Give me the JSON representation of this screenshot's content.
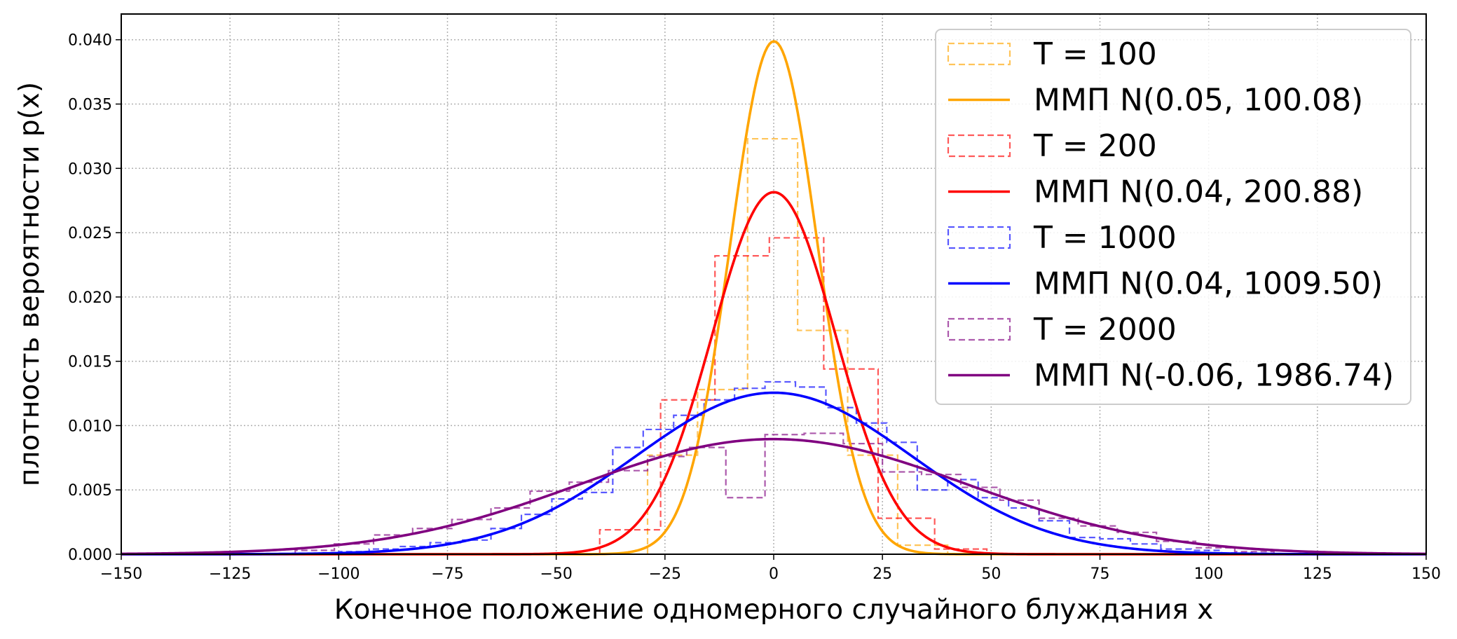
{
  "chart_data": {
    "type": "line",
    "title": "",
    "xlabel": "Конечное положение одномерного случайного блуждания x",
    "ylabel": "плотность вероятности p(x)",
    "xlim": [
      -150,
      150
    ],
    "ylim": [
      0,
      0.042
    ],
    "x_ticks": [
      -150,
      -125,
      -100,
      -75,
      -50,
      -25,
      0,
      25,
      50,
      75,
      100,
      125,
      150
    ],
    "y_ticks": [
      0.0,
      0.005,
      0.01,
      0.015,
      0.02,
      0.025,
      0.03,
      0.035,
      0.04
    ],
    "x_tick_labels": [
      "−150",
      "−125",
      "−100",
      "−75",
      "−50",
      "−25",
      "0",
      "25",
      "50",
      "75",
      "100",
      "125",
      "150"
    ],
    "y_tick_labels": [
      "0.000",
      "0.005",
      "0.010",
      "0.015",
      "0.020",
      "0.025",
      "0.030",
      "0.035",
      "0.040"
    ],
    "grid": true,
    "legend_position": "top-right",
    "histograms": [
      {
        "name": "T = 100",
        "color": "#FFA500",
        "edges": [
          -29,
          -17.5,
          -6,
          5.5,
          17,
          28.5,
          40
        ],
        "values": [
          0.0077,
          0.0128,
          0.0323,
          0.0174,
          0.0077,
          0.0007
        ]
      },
      {
        "name": "T = 200",
        "color": "#FF0000",
        "edges": [
          -40,
          -26,
          -13.5,
          -1,
          11.5,
          24,
          37,
          49
        ],
        "values": [
          0.0019,
          0.012,
          0.0232,
          0.0246,
          0.0144,
          0.0028,
          0.0004
        ]
      },
      {
        "name": "T = 1000",
        "color": "#0000FF",
        "edges": [
          -100,
          -93,
          -86,
          -79,
          -72,
          -65,
          -58,
          -51,
          -44,
          -37,
          -30,
          -23,
          -16,
          -9,
          -2,
          5,
          12,
          19,
          26,
          33,
          40,
          47,
          54,
          61,
          68,
          75,
          82,
          89,
          96,
          103,
          110
        ],
        "values": [
          0.0002,
          0.0004,
          0.0006,
          0.0009,
          0.0011,
          0.002,
          0.0031,
          0.0043,
          0.0048,
          0.0083,
          0.0097,
          0.0108,
          0.012,
          0.0129,
          0.0134,
          0.013,
          0.0114,
          0.0102,
          0.0087,
          0.005,
          0.0058,
          0.0044,
          0.0036,
          0.0026,
          0.0013,
          0.0012,
          0.0008,
          0.0004,
          0.0003,
          0.0001
        ]
      },
      {
        "name": "T = 2000",
        "color": "#800080",
        "edges": [
          -110,
          -101,
          -92,
          -83,
          -74,
          -65,
          -56,
          -47,
          -38,
          -29,
          -20,
          -11,
          -2,
          7,
          16,
          25,
          34,
          43,
          52,
          61,
          70,
          79,
          88,
          97,
          106,
          115
        ],
        "values": [
          0.0003,
          0.0008,
          0.0015,
          0.002,
          0.0027,
          0.0036,
          0.0049,
          0.0056,
          0.0065,
          0.0076,
          0.0083,
          0.0044,
          0.0093,
          0.0094,
          0.0086,
          0.0064,
          0.0062,
          0.0052,
          0.0042,
          0.0028,
          0.0022,
          0.0017,
          0.001,
          0.0005,
          0.0002
        ]
      }
    ],
    "fits": [
      {
        "name": "ММП N(0.05, 100.08)",
        "color": "#FFA500",
        "mean": 0.05,
        "variance": 100.08
      },
      {
        "name": "ММП N(0.04, 200.88)",
        "color": "#FF0000",
        "mean": 0.04,
        "variance": 200.88
      },
      {
        "name": "ММП N(0.04, 1009.50)",
        "color": "#0000FF",
        "mean": 0.04,
        "variance": 1009.5
      },
      {
        "name": "ММП N(-0.06, 1986.74)",
        "color": "#800080",
        "mean": -0.06,
        "variance": 1986.74
      }
    ],
    "legend": [
      {
        "label": "T = 100",
        "style": "hist",
        "color": "#FFA500"
      },
      {
        "label": "ММП N(0.05, 100.08)",
        "style": "line",
        "color": "#FFA500"
      },
      {
        "label": "T = 200",
        "style": "hist",
        "color": "#FF0000"
      },
      {
        "label": "ММП N(0.04, 200.88)",
        "style": "line",
        "color": "#FF0000"
      },
      {
        "label": "T = 1000",
        "style": "hist",
        "color": "#0000FF"
      },
      {
        "label": "ММП N(0.04, 1009.50)",
        "style": "line",
        "color": "#0000FF"
      },
      {
        "label": "T = 2000",
        "style": "hist",
        "color": "#800080"
      },
      {
        "label": "ММП N(-0.06, 1986.74)",
        "style": "line",
        "color": "#800080"
      }
    ]
  }
}
